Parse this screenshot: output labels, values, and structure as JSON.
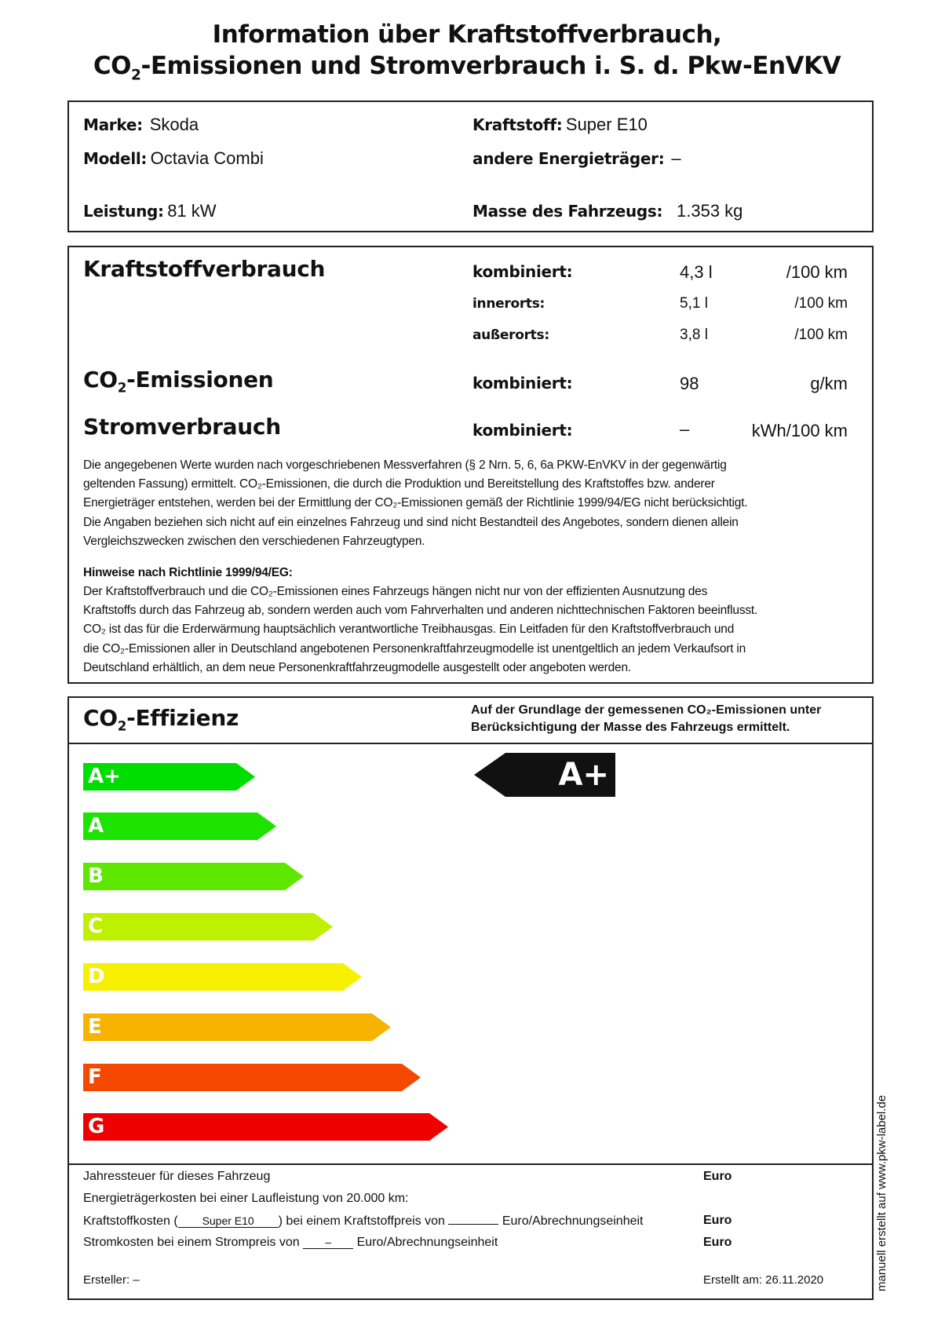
{
  "title": {
    "line1": "Information über Kraftstoffverbrauch,",
    "line2_a": "CO",
    "line2_sub": "2",
    "line2_b": "-Emissionen und Stromverbrauch i. S. d. Pkw-EnVKV"
  },
  "vehicle": {
    "marke_label": "Marke:",
    "marke": "Skoda",
    "modell_label": "Modell:",
    "modell": "Octavia Combi",
    "leistung_label": "Leistung:",
    "leistung": "81 kW",
    "kraftstoff_label": "Kraftstoff:",
    "kraftstoff": "Super E10",
    "andere_label": "andere Energieträger:",
    "andere": "–",
    "masse_label": "Masse des Fahrzeugs:",
    "masse": "1.353 kg"
  },
  "consumption": {
    "heading": "Kraftstoffverbrauch",
    "rows": [
      {
        "label": "kombiniert:",
        "value": "4,3 l",
        "unit": "/100 km"
      },
      {
        "label": "innerorts:",
        "value": "5,1 l",
        "unit": "/100 km"
      },
      {
        "label": "außerorts:",
        "value": "3,8 l",
        "unit": "/100 km"
      }
    ],
    "co2_heading_a": "CO",
    "co2_heading_sub": "2",
    "co2_heading_b": "-Emissionen",
    "co2": {
      "label": "kombiniert:",
      "value": "98",
      "unit": "g/km"
    },
    "strom_heading": "Stromverbrauch",
    "strom": {
      "label": "kombiniert:",
      "value": "–",
      "unit": "kWh/100 km"
    }
  },
  "notes": {
    "p1": [
      "Die angegebenen Werte wurden nach vorgeschriebenen Messverfahren (§ 2 Nrn. 5, 6, 6a PKW-EnVKV in der gegenwärtig",
      "geltenden Fassung) ermittelt. CO₂-Emissionen, die durch die Produktion und Bereitstellung des Kraftstoffes bzw. anderer",
      "Energieträger entstehen, werden bei der Ermittlung der CO₂-Emissionen gemäß der Richtlinie 1999/94/EG nicht berücksichtigt.",
      "Die Angaben beziehen sich nicht auf ein einzelnes Fahrzeug und sind nicht Bestandteil des Angebotes, sondern dienen allein",
      "Vergleichszwecken zwischen den verschiedenen Fahrzeugtypen."
    ],
    "hinweis_heading": "Hinweise nach Richtlinie 1999/94/EG:",
    "p2": [
      "Der Kraftstoffverbrauch und die CO₂-Emissionen eines Fahrzeugs hängen nicht nur von der effizienten Ausnutzung des",
      "Kraftstoffs durch das Fahrzeug ab, sondern werden auch vom Fahrverhalten und anderen nichttechnischen Faktoren beeinflusst.",
      "CO₂ ist das für die Erderwärmung hauptsächlich verantwortliche Treibhausgas. Ein Leitfaden für den Kraftstoffverbrauch und",
      "die CO₂-Emissionen aller in Deutschland angebotenen Personenkraftfahrzeugmodelle ist unentgeltlich an jedem Verkaufsort in",
      "Deutschland erhältlich, an dem neue Personenkraftfahrzeugmodelle ausgestellt oder angeboten werden."
    ]
  },
  "efficiency": {
    "heading_a": "CO",
    "heading_sub": "2",
    "heading_b": "-Effizienz",
    "note_line1": "Auf der Grundlage der gemessenen CO₂-Emissionen unter",
    "note_line2": "Berücksichtigung der Masse des Fahrzeugs ermittelt.",
    "classes": [
      {
        "label": "A+",
        "color": "#00dd00"
      },
      {
        "label": "A",
        "color": "#1ee200"
      },
      {
        "label": "B",
        "color": "#5ee800"
      },
      {
        "label": "C",
        "color": "#bff000"
      },
      {
        "label": "D",
        "color": "#f7f000"
      },
      {
        "label": "E",
        "color": "#f8b200"
      },
      {
        "label": "F",
        "color": "#f54800"
      },
      {
        "label": "G",
        "color": "#ee0000"
      }
    ],
    "rating": "A+",
    "rating_color": "#111111"
  },
  "costs": {
    "jahressteuer": "Jahressteuer für dieses Fahrzeug",
    "euro": "Euro",
    "energie": "Energieträgerkosten bei einer Laufleistung von 20.000 km:",
    "kraft_a": "Kraftstoffkosten (",
    "kraft_fuel": "Super E10",
    "kraft_b": ") bei einem Kraftstoffpreis von",
    "kraft_c": "Euro/Abrechnungseinheit",
    "strom_a": "Stromkosten bei einem Strompreis von",
    "strom_price": "–",
    "strom_b": "Euro/Abrechnungseinheit",
    "ersteller": "Ersteller: –",
    "erstellt": "Erstellt am: 26.11.2020"
  },
  "side_note": "manuell erstellt auf www.pkw-label.de"
}
